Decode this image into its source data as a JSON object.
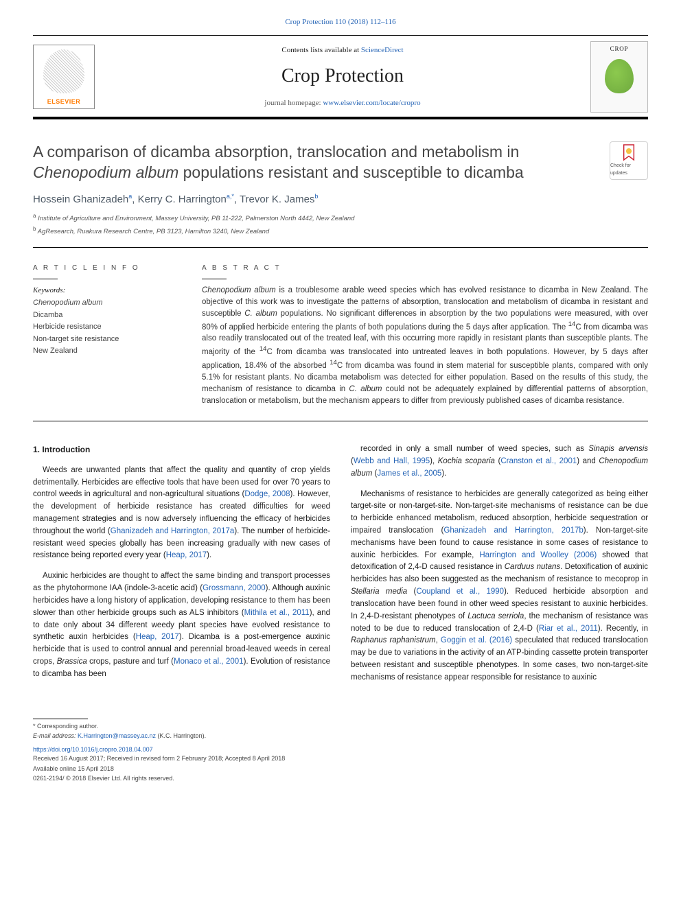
{
  "top_link": {
    "text": "Crop Protection 110 (2018) 112–116",
    "color": "#2463b5"
  },
  "header": {
    "contents_prefix": "Contents lists available at ",
    "contents_link": "ScienceDirect",
    "journal": "Crop Protection",
    "homepage_prefix": "journal homepage: ",
    "homepage_link": "www.elsevier.com/locate/cropro",
    "publisher_logo_text": "ELSEVIER",
    "cover_title": "CROP"
  },
  "check_updates": {
    "label": "Check for updates"
  },
  "article": {
    "title_plain_a": "A comparison of dicamba absorption, translocation and metabolism in ",
    "title_italic": "Chenopodium album",
    "title_plain_b": " populations resistant and susceptible to dicamba",
    "authors_html": [
      {
        "name": "Hossein Ghanizadeh",
        "sup": "a"
      },
      {
        "name": "Kerry C. Harrington",
        "sup": "a,*"
      },
      {
        "name": "Trevor K. James",
        "sup": "b"
      }
    ],
    "affiliations": [
      {
        "sup": "a",
        "text": "Institute of Agriculture and Environment, Massey University, PB 11-222, Palmerston North 4442, New Zealand"
      },
      {
        "sup": "b",
        "text": "AgResearch, Ruakura Research Centre, PB 3123, Hamilton 3240, New Zealand"
      }
    ]
  },
  "meta": {
    "article_info_label": "A R T I C L E  I N F O",
    "abstract_label": "A B S T R A C T",
    "keywords_head": "Keywords:",
    "keywords": [
      "Chenopodium album",
      "Dicamba",
      "Herbicide resistance",
      "Non-target site resistance",
      "New Zealand"
    ],
    "abstract": "Chenopodium album is a troublesome arable weed species which has evolved resistance to dicamba in New Zealand. The objective of this work was to investigate the patterns of absorption, translocation and metabolism of dicamba in resistant and susceptible C. album populations. No significant differences in absorption by the two populations were measured, with over 80% of applied herbicide entering the plants of both populations during the 5 days after application. The 14C from dicamba was also readily translocated out of the treated leaf, with this occurring more rapidly in resistant plants than susceptible plants. The majority of the 14C from dicamba was translocated into untreated leaves in both populations. However, by 5 days after application, 18.4% of the absorbed 14C from dicamba was found in stem material for susceptible plants, compared with only 5.1% for resistant plants. No dicamba metabolism was detected for either population. Based on the results of this study, the mechanism of resistance to dicamba in C. album could not be adequately explained by differential patterns of absorption, translocation or metabolism, but the mechanism appears to differ from previously published cases of dicamba resistance."
  },
  "intro": {
    "heading": "1. Introduction",
    "left_paras": [
      "Weeds are unwanted plants that affect the quality and quantity of crop yields detrimentally. Herbicides are effective tools that have been used for over 70 years to control weeds in agricultural and non-agricultural situations (<a>Dodge, 2008</a>). However, the development of herbicide resistance has created difficulties for weed management strategies and is now adversely influencing the efficacy of herbicides throughout the world (<a>Ghanizadeh and Harrington, 2017a</a>). The number of herbicide-resistant weed species globally has been increasing gradually with new cases of resistance being reported every year (<a>Heap, 2017</a>).",
      "Auxinic herbicides are thought to affect the same binding and transport processes as the phytohormone IAA (indole-3-acetic acid) (<a>Grossmann, 2000</a>). Although auxinic herbicides have a long history of application, developing resistance to them has been slower than other herbicide groups such as ALS inhibitors (<a>Mithila et al., 2011</a>), and to date only about 34 different weedy plant species have evolved resistance to synthetic auxin herbicides (<a>Heap, 2017</a>). Dicamba is a post-emergence auxinic herbicide that is used to control annual and perennial broad-leaved weeds in cereal crops, <span class=\"italic\">Brassica</span> crops, pasture and turf (<a>Monaco et al., 2001</a>). Evolution of resistance to dicamba has been"
    ],
    "right_paras": [
      "recorded in only a small number of weed species, such as <span class=\"italic\">Sinapis arvensis</span> (<a>Webb and Hall, 1995</a>), <span class=\"italic\">Kochia scoparia</span> (<a>Cranston et al., 2001</a>) and <span class=\"italic\">Chenopodium album</span> (<a>James et al., 2005</a>).",
      "Mechanisms of resistance to herbicides are generally categorized as being either target-site or non-target-site. Non-target-site mechanisms of resistance can be due to herbicide enhanced metabolism, reduced absorption, herbicide sequestration or impaired translocation (<a>Ghanizadeh and Harrington, 2017b</a>). Non-target-site mechanisms have been found to cause resistance in some cases of resistance to auxinic herbicides. For example, <a>Harrington and Woolley (2006)</a> showed that detoxification of 2,4-D caused resistance in <span class=\"italic\">Carduus nutans</span>. Detoxification of auxinic herbicides has also been suggested as the mechanism of resistance to mecoprop in <span class=\"italic\">Stellaria media</span> (<a>Coupland et al., 1990</a>). Reduced herbicide absorption and translocation have been found in other weed species resistant to auxinic herbicides. In 2,4-D-resistant phenotypes of <span class=\"italic\">Lactuca serriola</span>, the mechanism of resistance was noted to be due to reduced translocation of 2,4-D (<a>Riar et al., 2011</a>). Recently, in <span class=\"italic\">Raphanus raphanistrum</span>, <a>Goggin et al. (2016)</a> speculated that reduced translocation may be due to variations in the activity of an ATP-binding cassette protein transporter between resistant and susceptible phenotypes. In some cases, two non-target-site mechanisms of resistance appear responsible for resistance to auxinic"
    ]
  },
  "footnotes": {
    "corr": "* Corresponding author.",
    "email_label": "E-mail address: ",
    "email": "K.Harrington@massey.ac.nz",
    "email_suffix": " (K.C. Harrington).",
    "doi": "https://doi.org/10.1016/j.cropro.2018.04.007",
    "received": "Received 16 August 2017; Received in revised form 2 February 2018; Accepted 8 April 2018",
    "online": "Available online 15 April 2018",
    "copyright": "0261-2194/ © 2018 Elsevier Ltd. All rights reserved."
  },
  "colors": {
    "link": "#2463b5",
    "text": "#222222",
    "muted": "#555555",
    "orange": "#ff7a00"
  }
}
